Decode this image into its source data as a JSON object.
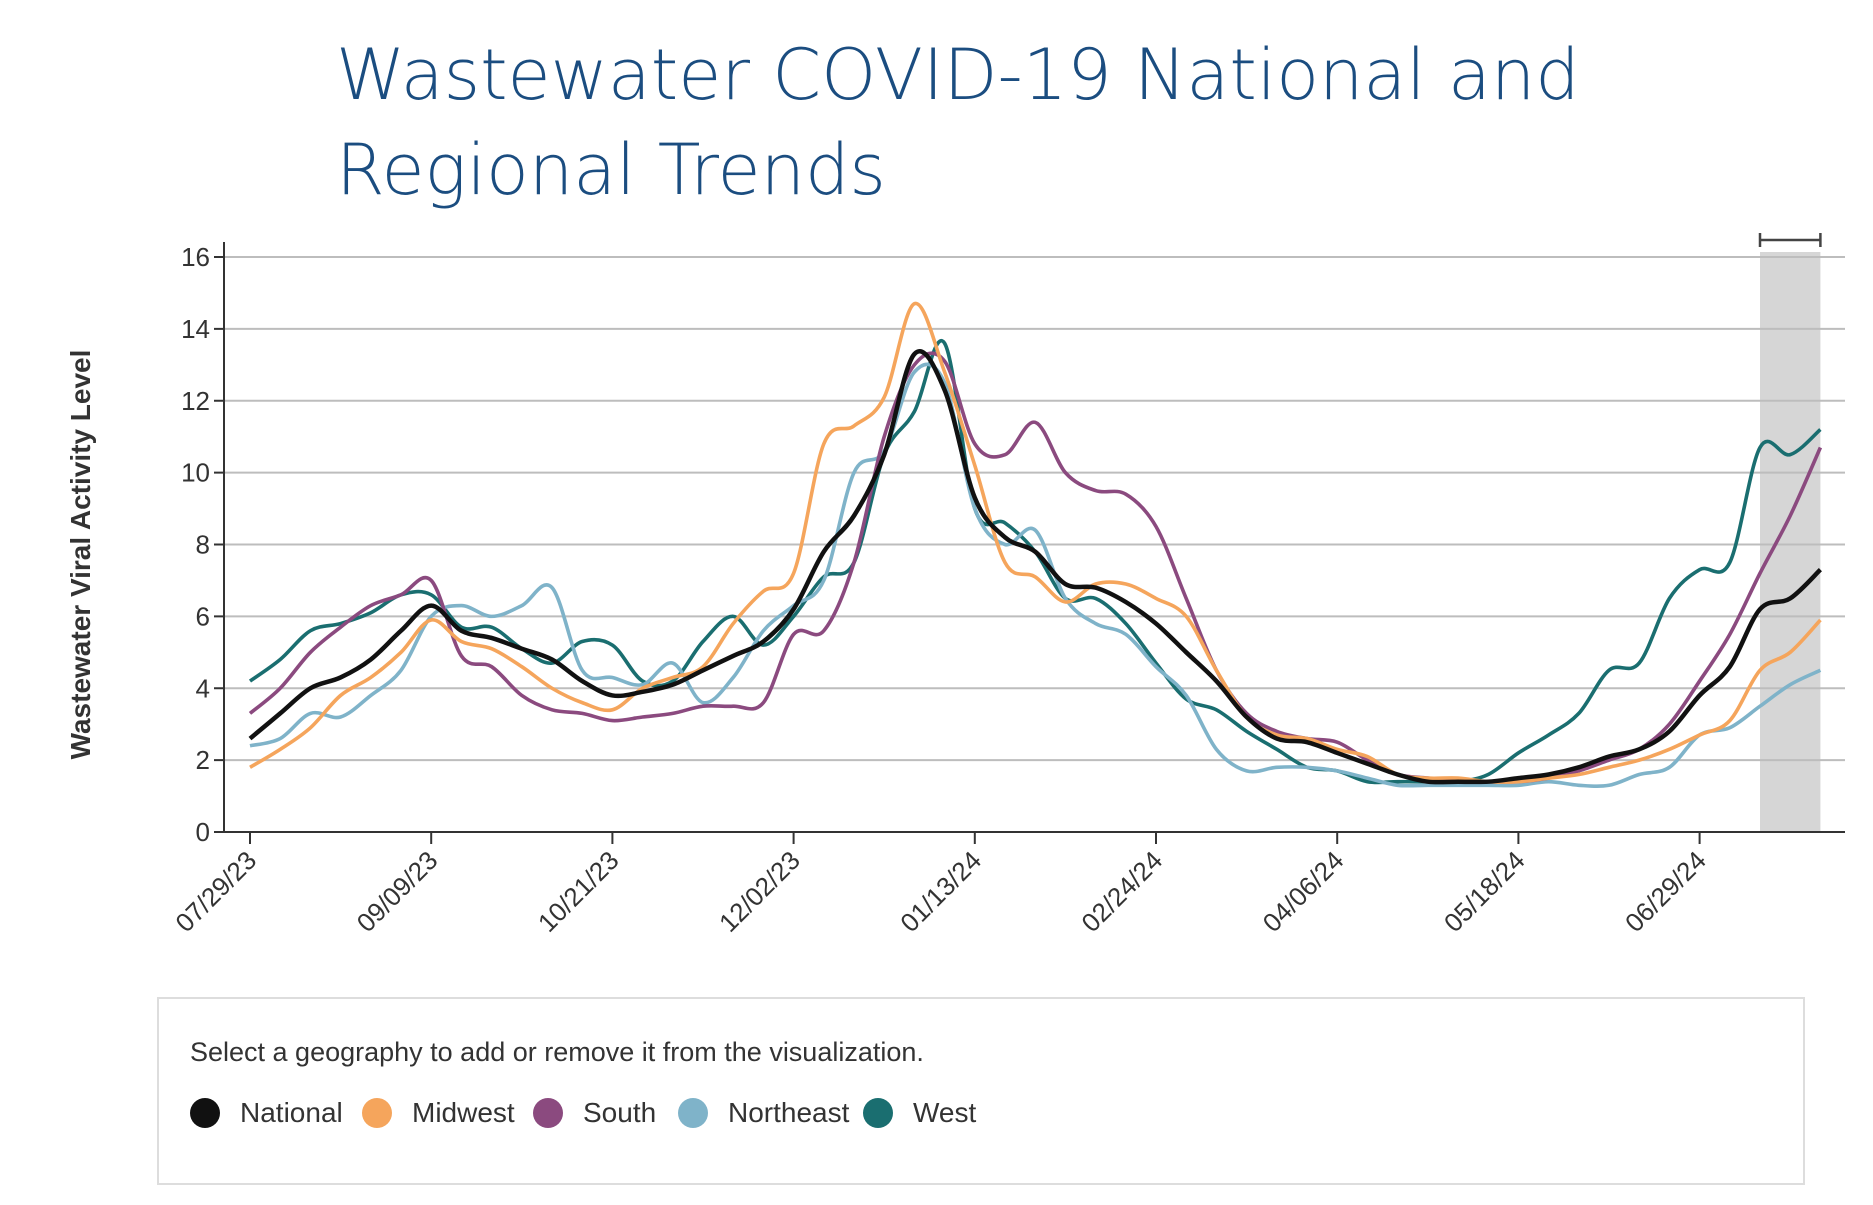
{
  "title_line1": "Wastewater COVID-19 National and",
  "title_line2": "Regional Trends",
  "chart_data": {
    "type": "line",
    "title": "Wastewater COVID-19 National and Regional Trends",
    "ylabel": "Wastewater Viral Activity Level",
    "xlabel": "",
    "ylim": [
      0,
      16
    ],
    "yticks": [
      "0",
      "2",
      "4",
      "6",
      "8",
      "10",
      "12",
      "14",
      "16"
    ],
    "xtick_labels": [
      "07/29/23",
      "09/09/23",
      "10/21/23",
      "12/02/23",
      "01/13/24",
      "02/24/24",
      "04/06/24",
      "05/18/24",
      "06/29/24"
    ],
    "xtick_week_index": [
      0,
      6,
      12,
      18,
      24,
      30,
      36,
      42,
      48
    ],
    "x_unit": "weeks since 07/29/23",
    "provisional_weeks": [
      50,
      52
    ],
    "grid": true,
    "series": [
      {
        "name": "National",
        "color": "#111111",
        "values": [
          2.6,
          3.3,
          4.0,
          4.3,
          4.8,
          5.6,
          6.3,
          5.6,
          5.4,
          5.1,
          4.8,
          4.2,
          3.8,
          3.9,
          4.1,
          4.5,
          4.9,
          5.3,
          6.2,
          7.8,
          8.8,
          10.5,
          13.3,
          12.3,
          9.3,
          8.2,
          7.8,
          6.9,
          6.8,
          6.4,
          5.8,
          5.0,
          4.2,
          3.2,
          2.6,
          2.5,
          2.2,
          1.9,
          1.6,
          1.4,
          1.4,
          1.4,
          1.5,
          1.6,
          1.8,
          2.1,
          2.3,
          2.8,
          3.8,
          4.6,
          6.2,
          6.5,
          7.3
        ]
      },
      {
        "name": "Midwest",
        "color": "#f5a55c",
        "values": [
          1.8,
          2.3,
          2.9,
          3.8,
          4.3,
          5.0,
          5.9,
          5.3,
          5.1,
          4.6,
          4.0,
          3.6,
          3.4,
          4.0,
          4.3,
          4.6,
          5.8,
          6.7,
          7.2,
          10.8,
          11.3,
          12.1,
          14.7,
          12.8,
          10.2,
          7.5,
          7.1,
          6.4,
          6.9,
          6.9,
          6.5,
          6.0,
          4.5,
          3.2,
          2.7,
          2.6,
          2.3,
          2.1,
          1.6,
          1.5,
          1.5,
          1.4,
          1.4,
          1.5,
          1.6,
          1.8,
          2.0,
          2.3,
          2.7,
          3.1,
          4.5,
          5.0,
          5.9
        ]
      },
      {
        "name": "South",
        "color": "#8b4a7f",
        "values": [
          3.3,
          4.0,
          5.0,
          5.7,
          6.3,
          6.6,
          7.0,
          4.9,
          4.6,
          3.8,
          3.4,
          3.3,
          3.1,
          3.2,
          3.3,
          3.5,
          3.5,
          3.6,
          5.5,
          5.6,
          7.5,
          11.0,
          13.0,
          13.1,
          10.8,
          10.5,
          11.4,
          10.0,
          9.5,
          9.4,
          8.5,
          6.5,
          4.5,
          3.3,
          2.8,
          2.6,
          2.5,
          2.0,
          1.6,
          1.5,
          1.4,
          1.4,
          1.4,
          1.5,
          1.7,
          2.0,
          2.3,
          3.0,
          4.2,
          5.5,
          7.2,
          8.8,
          10.7
        ]
      },
      {
        "name": "Northeast",
        "color": "#7fb3c9",
        "values": [
          2.4,
          2.6,
          3.3,
          3.2,
          3.8,
          4.5,
          6.0,
          6.3,
          6.0,
          6.3,
          6.8,
          4.5,
          4.3,
          4.1,
          4.7,
          3.6,
          4.3,
          5.6,
          6.3,
          7.0,
          10.0,
          10.6,
          12.8,
          12.5,
          9.0,
          8.0,
          8.4,
          6.5,
          5.8,
          5.5,
          4.6,
          3.8,
          2.3,
          1.7,
          1.8,
          1.8,
          1.7,
          1.5,
          1.3,
          1.3,
          1.3,
          1.3,
          1.3,
          1.4,
          1.3,
          1.3,
          1.6,
          1.8,
          2.7,
          2.9,
          3.5,
          4.1,
          4.5
        ]
      },
      {
        "name": "West",
        "color": "#1a6e70",
        "values": [
          4.2,
          4.8,
          5.6,
          5.8,
          6.1,
          6.6,
          6.6,
          5.7,
          5.7,
          5.1,
          4.7,
          5.3,
          5.2,
          4.2,
          4.2,
          5.3,
          6.0,
          5.2,
          6.0,
          7.1,
          7.5,
          10.5,
          11.7,
          13.6,
          9.0,
          8.6,
          7.8,
          6.5,
          6.5,
          5.8,
          4.7,
          3.7,
          3.4,
          2.8,
          2.3,
          1.8,
          1.7,
          1.4,
          1.4,
          1.4,
          1.4,
          1.6,
          2.2,
          2.7,
          3.3,
          4.5,
          4.7,
          6.5,
          7.3,
          7.5,
          10.7,
          10.5,
          11.2
        ]
      }
    ],
    "legend_note": "Select a geography to add or remove it from the visualization.",
    "legend_placement": "bottom"
  }
}
